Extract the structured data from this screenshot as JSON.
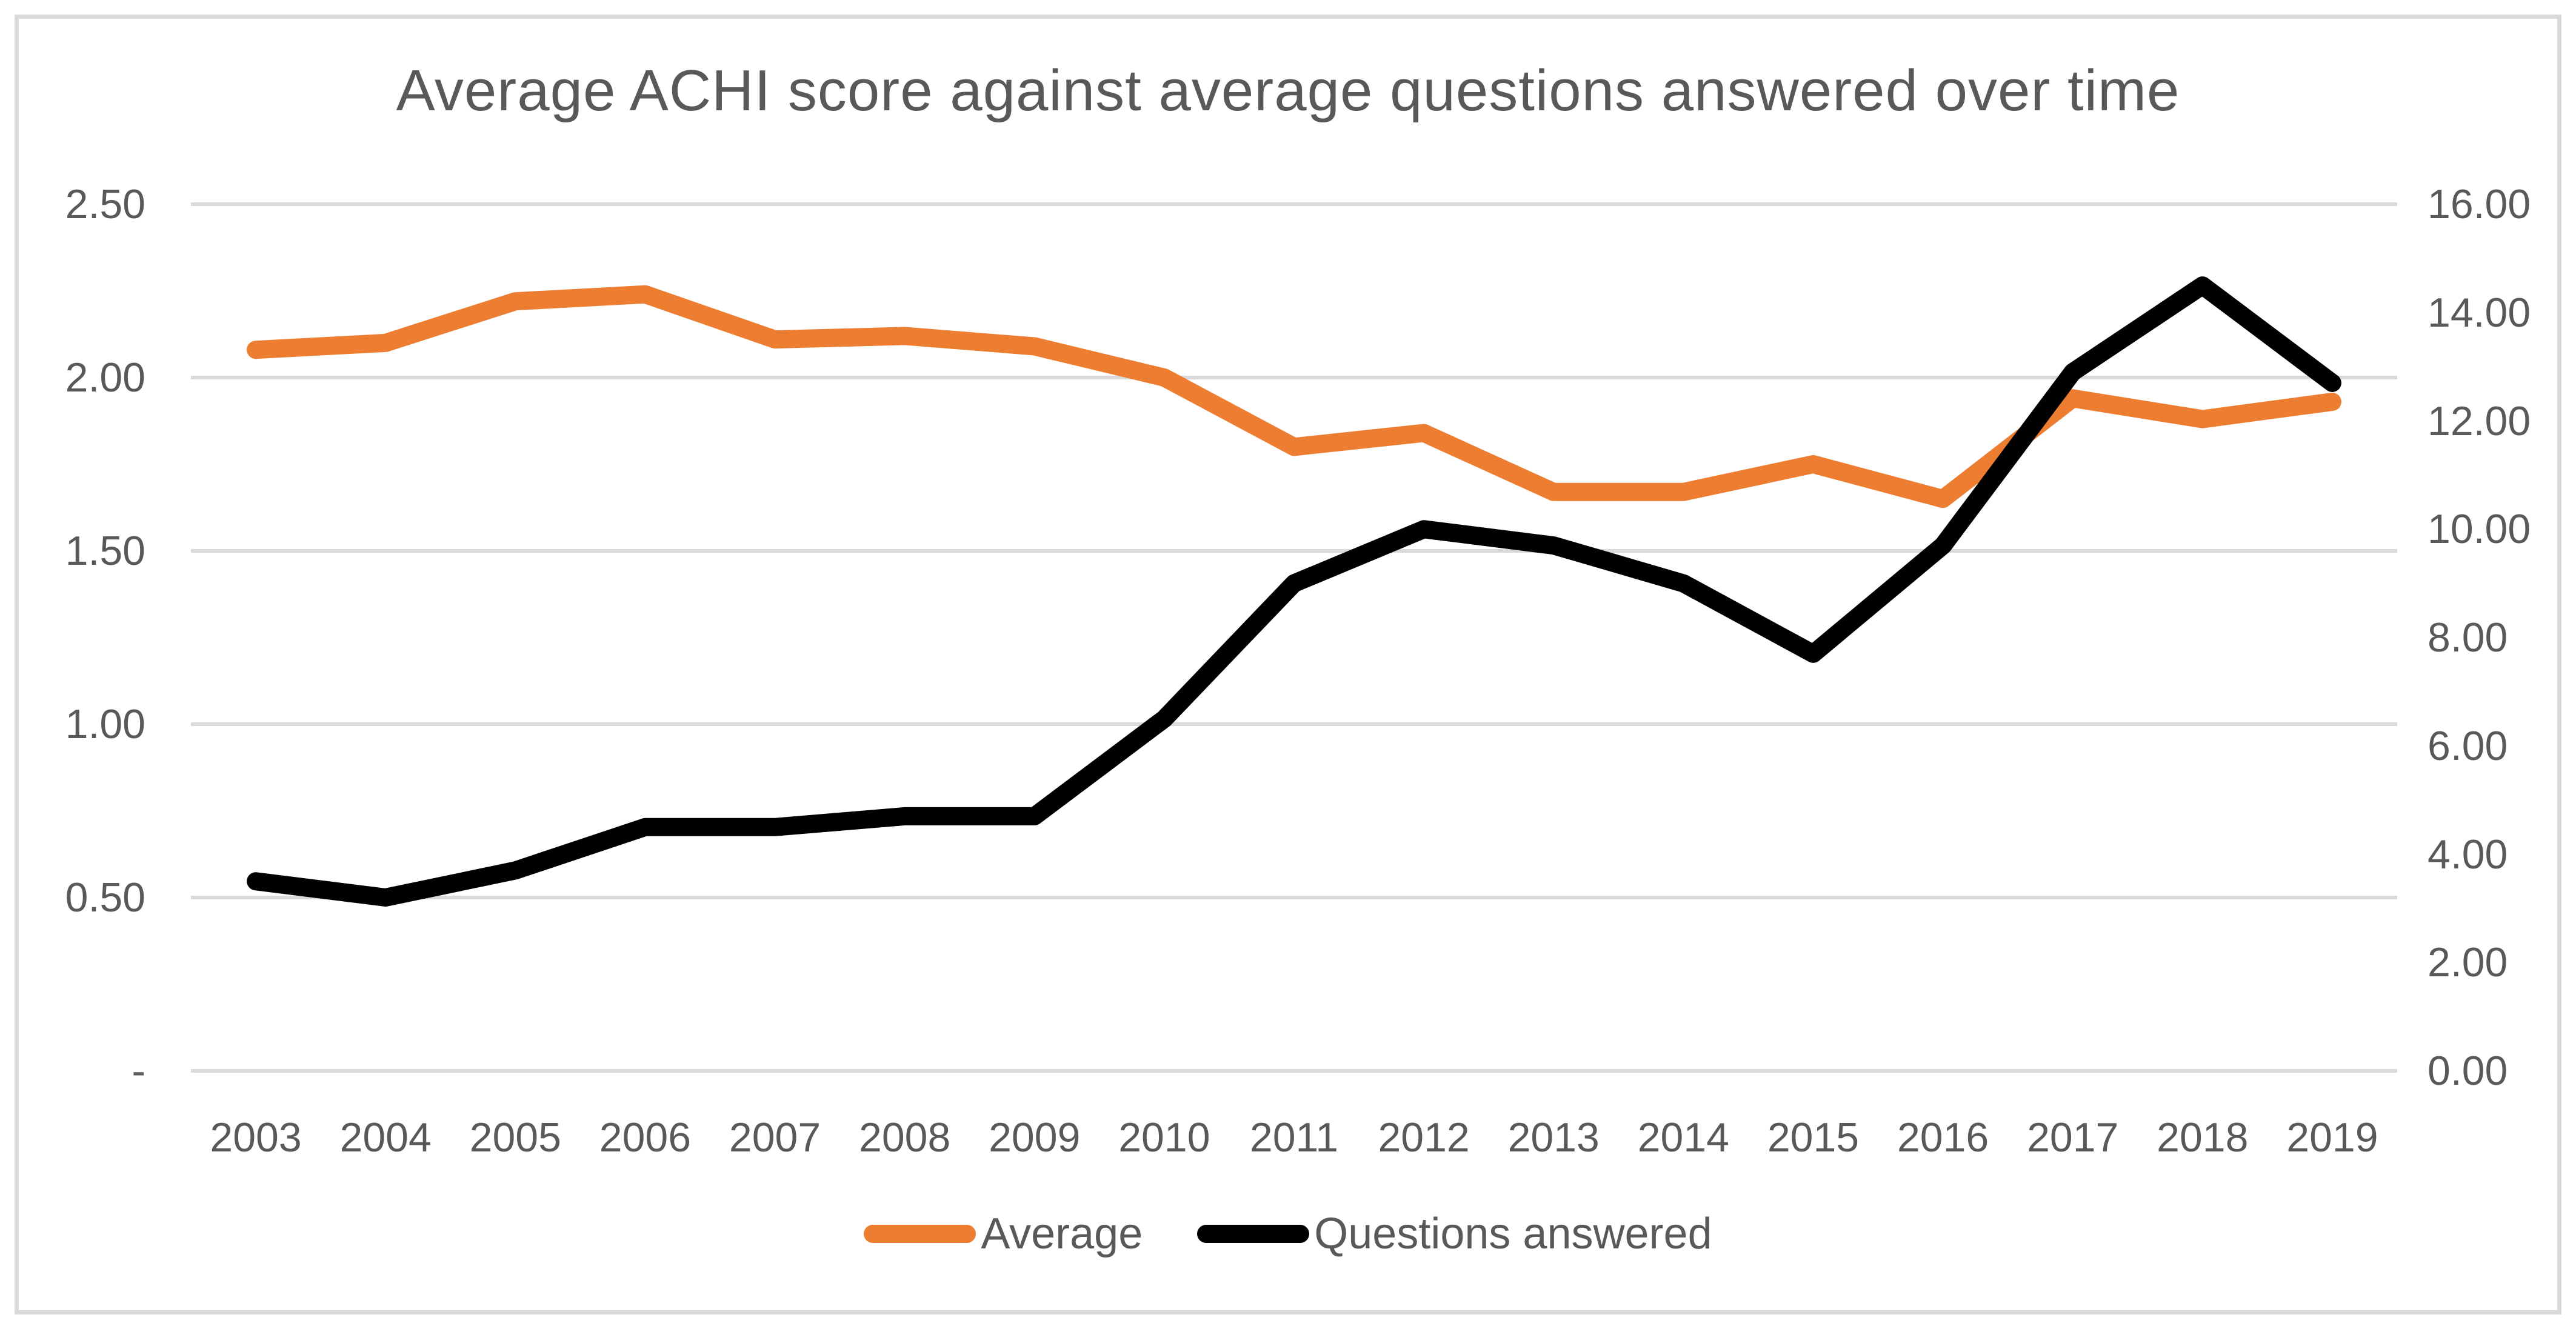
{
  "chart_data": {
    "type": "line",
    "title": "Average ACHI score against average questions answered over time",
    "categories": [
      "2003",
      "2004",
      "2005",
      "2006",
      "2007",
      "2008",
      "2009",
      "2010",
      "2011",
      "2012",
      "2013",
      "2014",
      "2015",
      "2016",
      "2017",
      "2018",
      "2019"
    ],
    "series": [
      {
        "name": "Average",
        "axis": "left",
        "color": "#ED7D31",
        "values": [
          2.08,
          2.1,
          2.22,
          2.24,
          2.11,
          2.12,
          2.09,
          2.0,
          1.8,
          1.84,
          1.67,
          1.67,
          1.75,
          1.65,
          1.94,
          1.88,
          1.93
        ]
      },
      {
        "name": "Questions answered",
        "axis": "right",
        "color": "#000000",
        "values": [
          3.5,
          3.2,
          3.7,
          4.5,
          4.5,
          4.7,
          4.7,
          6.5,
          9.0,
          10.0,
          9.7,
          9.0,
          7.7,
          9.7,
          12.9,
          14.5,
          12.7
        ]
      }
    ],
    "left_axis": {
      "min": 0,
      "max": 2.5,
      "ticks": [
        {
          "label": "2.50",
          "value": 2.5
        },
        {
          "label": "2.00",
          "value": 2.0
        },
        {
          "label": "1.50",
          "value": 1.5
        },
        {
          "label": "1.00",
          "value": 1.0
        },
        {
          "label": "0.50",
          "value": 0.5
        },
        {
          "label": "-",
          "value": 0.0
        }
      ]
    },
    "right_axis": {
      "min": 0,
      "max": 16,
      "ticks": [
        {
          "label": "16.00",
          "value": 16
        },
        {
          "label": "14.00",
          "value": 14
        },
        {
          "label": "12.00",
          "value": 12
        },
        {
          "label": "10.00",
          "value": 10
        },
        {
          "label": "8.00",
          "value": 8
        },
        {
          "label": "6.00",
          "value": 6
        },
        {
          "label": "4.00",
          "value": 4
        },
        {
          "label": "2.00",
          "value": 2
        },
        {
          "label": "0.00",
          "value": 0
        }
      ]
    },
    "legend_position": "bottom",
    "grid": true,
    "gridline_color": "#D9D9D9",
    "text_color": "#595959",
    "border_color": "#D9D9D9"
  }
}
